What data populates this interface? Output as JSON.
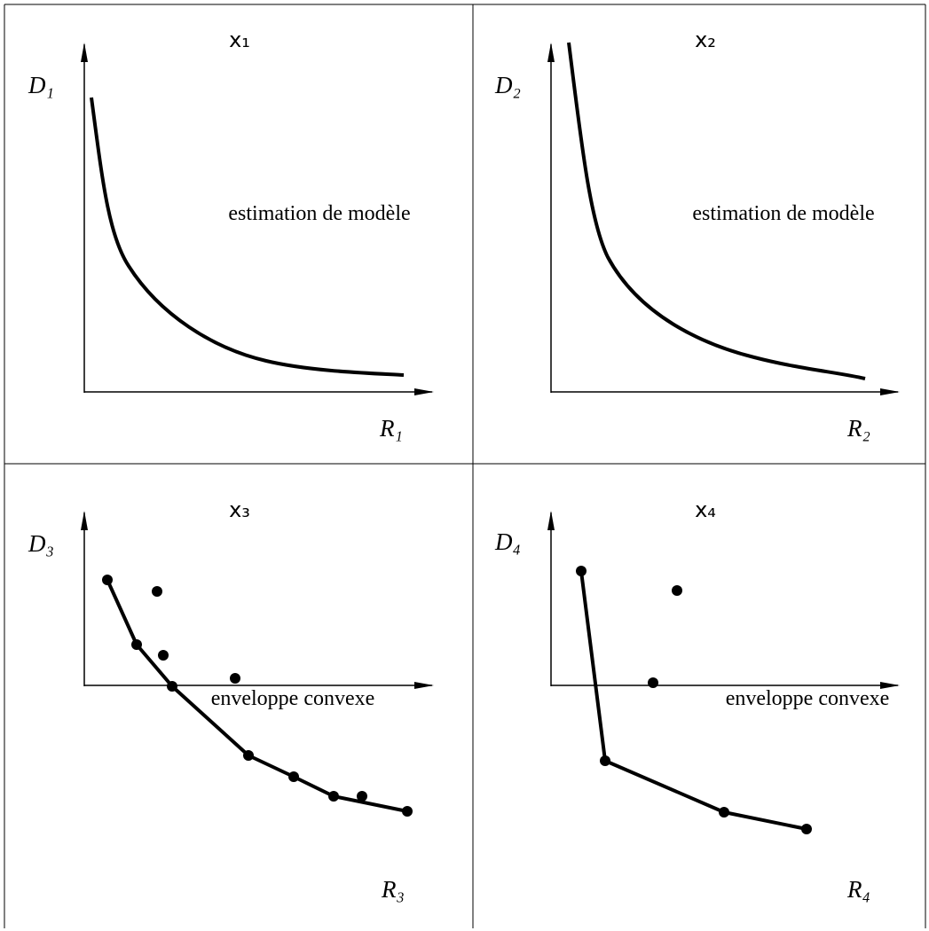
{
  "panels": [
    {
      "title": "x₁",
      "y_label": "D₁",
      "x_label": "R₁",
      "annotation": "estimation de modèle"
    },
    {
      "title": "x₂",
      "y_label": "D₂",
      "x_label": "R₂",
      "annotation": "estimation de modèle"
    },
    {
      "title": "x₃",
      "y_label": "D₃",
      "x_label": "R₃",
      "annotation": "enveloppe convexe"
    },
    {
      "title": "x₄",
      "y_label": "D₄",
      "x_label": "R₄",
      "annotation": "enveloppe convexe"
    }
  ]
}
